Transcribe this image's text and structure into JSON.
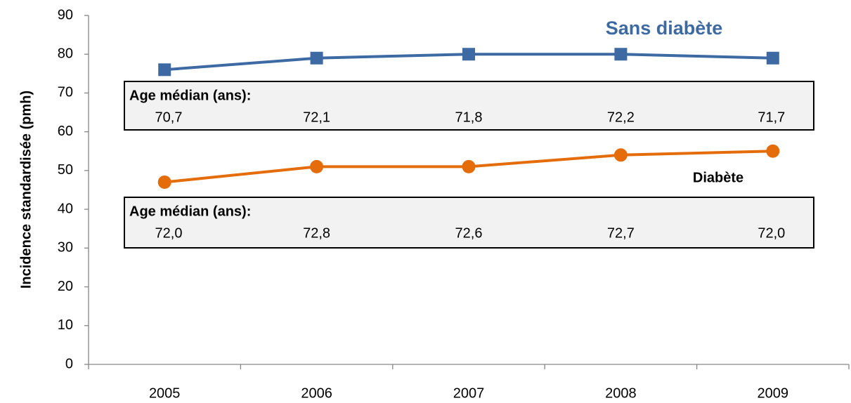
{
  "chart_data": {
    "type": "line",
    "y_label": "Incidence standardisée (pmh)",
    "categories": [
      "2005",
      "2006",
      "2007",
      "2008",
      "2009"
    ],
    "series": [
      {
        "name": "Sans diabète",
        "color": "#3d6aa3",
        "marker": "square",
        "values": [
          76,
          79,
          80,
          80,
          79
        ],
        "median_age_label": "Age médian (ans):",
        "median_age": [
          "70,7",
          "72,1",
          "71,8",
          "72,2",
          "71,7"
        ]
      },
      {
        "name": "Diabète",
        "color": "#e46c0a",
        "marker": "circle",
        "values": [
          47,
          51,
          51,
          54,
          55
        ],
        "median_age_label": "Age médian (ans):",
        "median_age": [
          "72,0",
          "72,8",
          "72,6",
          "72,7",
          "72,0"
        ]
      }
    ],
    "ylim": [
      0,
      90
    ],
    "yticks": [
      0,
      10,
      20,
      30,
      40,
      50,
      60,
      70,
      80,
      90
    ],
    "grid": false
  }
}
